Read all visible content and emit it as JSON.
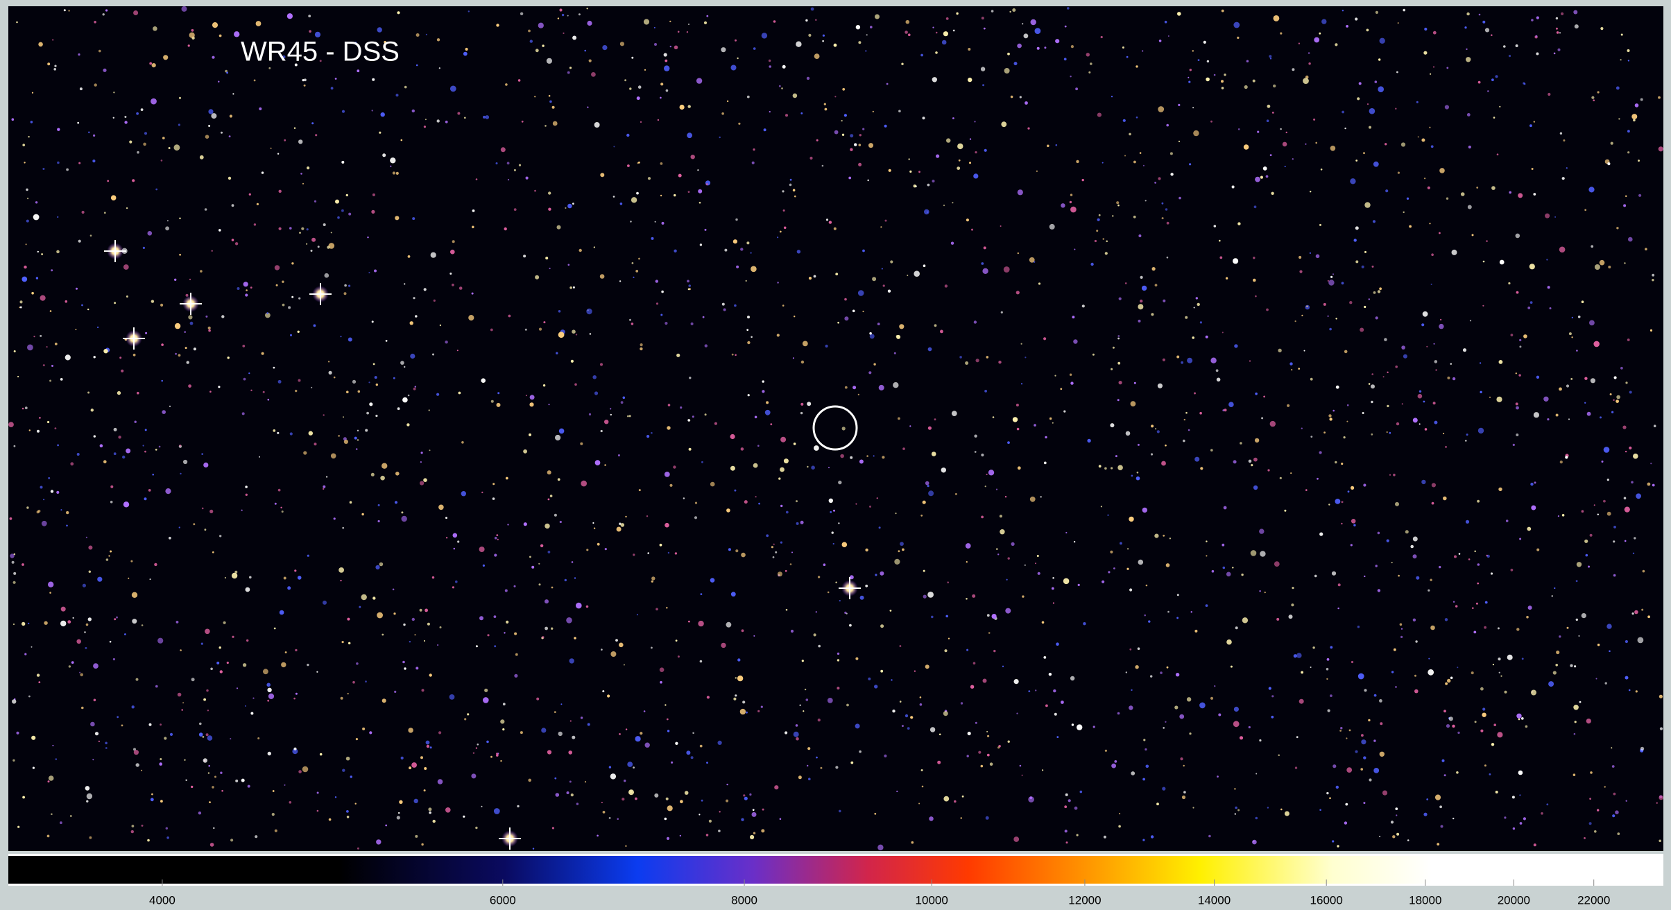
{
  "image": {
    "title": "WR45 - DSS"
  },
  "colorbar": {
    "type": "colorbar",
    "log": true,
    "lim": [
      3330,
      23900
    ],
    "ticks": [
      4000,
      6000,
      8000,
      10000,
      12000,
      14000,
      16000,
      18000,
      20000,
      22000
    ]
  }
}
